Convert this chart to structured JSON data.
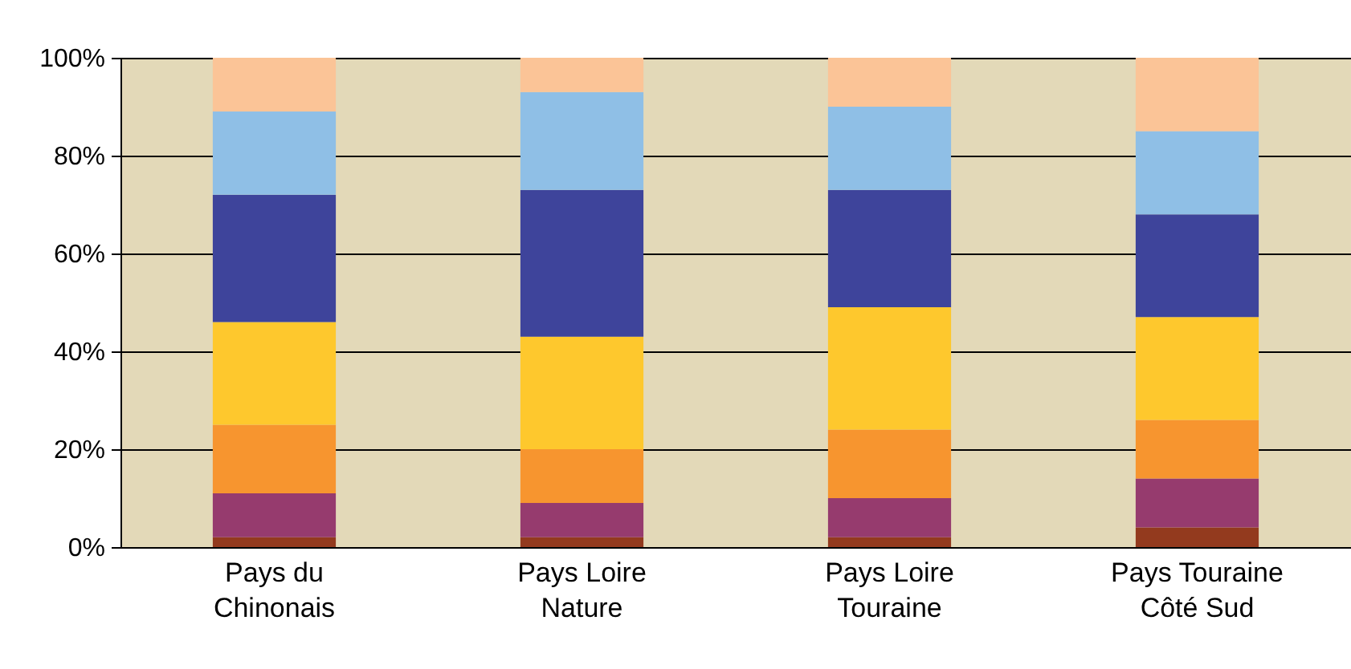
{
  "chart_data": {
    "type": "bar",
    "stacked": true,
    "categories": [
      "Pays du\nChinonais",
      "Pays Loire\nNature",
      "Pays Loire\nTouraine",
      "Pays Touraine\nCôté Sud"
    ],
    "series": [
      {
        "color": "#933a1e",
        "values": [
          2,
          2,
          2,
          4
        ]
      },
      {
        "color": "#963b6e",
        "values": [
          9,
          7,
          8,
          10
        ]
      },
      {
        "color": "#f7952f",
        "values": [
          14,
          11,
          14,
          12
        ]
      },
      {
        "color": "#fec82d",
        "values": [
          21,
          23,
          25,
          21
        ]
      },
      {
        "color": "#3e449b",
        "values": [
          26,
          30,
          24,
          21
        ]
      },
      {
        "color": "#8fbfe6",
        "values": [
          17,
          20,
          17,
          17
        ]
      },
      {
        "color": "#fbc497",
        "values": [
          11,
          7,
          10,
          15
        ]
      }
    ],
    "ylim": [
      0,
      100
    ],
    "yticks": [
      {
        "value": 0,
        "label": "0%"
      },
      {
        "value": 20,
        "label": "20%"
      },
      {
        "value": 40,
        "label": "40%"
      },
      {
        "value": 60,
        "label": "60%"
      },
      {
        "value": 80,
        "label": "80%"
      },
      {
        "value": 100,
        "label": "100%"
      }
    ],
    "grid": "y"
  }
}
